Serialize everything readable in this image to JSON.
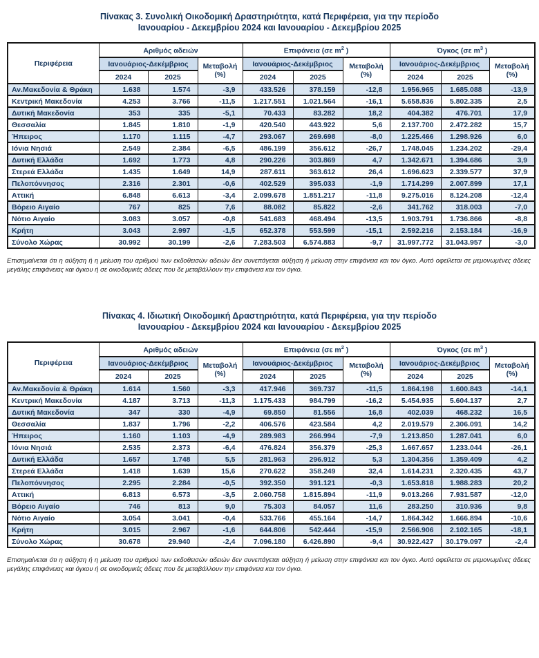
{
  "colors": {
    "text_navy": "#17375d",
    "row_stripe_blue": "#dae6f2",
    "header_period_blue": "#cdddee",
    "border": "#161616",
    "page_background": "#ffffff"
  },
  "tables": [
    {
      "title_line1": "Πίνακας 3. Συνολική Οικοδομική Δραστηριότητα, κατά Περιφέρεια, για την περίοδο",
      "title_line2": "Ιανουαρίου - Δεκεμβρίου 2024 και Ιανουαρίου - Δεκεμβρίου 2025",
      "header": {
        "region": "Περιφέρεια",
        "groups": [
          {
            "pre": "Αριθμός αδειών",
            "sup": "",
            "post": ""
          },
          {
            "pre": "Επιφάνεια (σε m",
            "sup": "2",
            "post": " )"
          },
          {
            "pre": "Όγκος (σε m",
            "sup": "3",
            "post": " )"
          }
        ],
        "period": "Ιανουάριος-Δεκέμβριος",
        "change": "Μεταβολή",
        "change_unit": "(%)",
        "year_2024": "2024",
        "year_2025": "2025"
      },
      "rows": [
        {
          "region": "Αν.Μακεδονία & Θράκη",
          "values": [
            "1.638",
            "1.574",
            "-3,9",
            "433.526",
            "378.159",
            "-12,8",
            "1.956.965",
            "1.685.088",
            "-13,9"
          ]
        },
        {
          "region": "Κεντρική Μακεδονία",
          "values": [
            "4.253",
            "3.766",
            "-11,5",
            "1.217.551",
            "1.021.564",
            "-16,1",
            "5.658.836",
            "5.802.335",
            "2,5"
          ]
        },
        {
          "region": "Δυτική Μακεδονία",
          "values": [
            "353",
            "335",
            "-5,1",
            "70.433",
            "83.282",
            "18,2",
            "404.382",
            "476.701",
            "17,9"
          ]
        },
        {
          "region": "Θεσσαλία",
          "values": [
            "1.845",
            "1.810",
            "-1,9",
            "420.540",
            "443.922",
            "5,6",
            "2.137.700",
            "2.472.282",
            "15,7"
          ]
        },
        {
          "region": "Ήπειρος",
          "values": [
            "1.170",
            "1.115",
            "-4,7",
            "293.067",
            "269.698",
            "-8,0",
            "1.225.466",
            "1.298.926",
            "6,0"
          ]
        },
        {
          "region": "Ιόνια Νησιά",
          "values": [
            "2.549",
            "2.384",
            "-6,5",
            "486.199",
            "356.612",
            "-26,7",
            "1.748.045",
            "1.234.202",
            "-29,4"
          ]
        },
        {
          "region": "Δυτική Ελλάδα",
          "values": [
            "1.692",
            "1.773",
            "4,8",
            "290.226",
            "303.869",
            "4,7",
            "1.342.671",
            "1.394.686",
            "3,9"
          ]
        },
        {
          "region": "Στερεά Ελλάδα",
          "values": [
            "1.435",
            "1.649",
            "14,9",
            "287.611",
            "363.612",
            "26,4",
            "1.696.623",
            "2.339.577",
            "37,9"
          ]
        },
        {
          "region": "Πελοπόννησος",
          "values": [
            "2.316",
            "2.301",
            "-0,6",
            "402.529",
            "395.033",
            "-1,9",
            "1.714.299",
            "2.007.899",
            "17,1"
          ]
        },
        {
          "region": "Αττική",
          "values": [
            "6.848",
            "6.613",
            "-3,4",
            "2.099.678",
            "1.851.217",
            "-11,8",
            "9.275.016",
            "8.124.208",
            "-12,4"
          ]
        },
        {
          "region": "Βόρειο Αιγαίο",
          "values": [
            "767",
            "825",
            "7,6",
            "88.082",
            "85.822",
            "-2,6",
            "341.762",
            "318.003",
            "-7,0"
          ]
        },
        {
          "region": "Νότιο Αιγαίο",
          "values": [
            "3.083",
            "3.057",
            "-0,8",
            "541.683",
            "468.494",
            "-13,5",
            "1.903.791",
            "1.736.866",
            "-8,8"
          ]
        },
        {
          "region": "Κρήτη",
          "values": [
            "3.043",
            "2.997",
            "-1,5",
            "652.378",
            "553.599",
            "-15,1",
            "2.592.216",
            "2.153.184",
            "-16,9"
          ]
        },
        {
          "region": "Σύνολο Χώρας",
          "values": [
            "30.992",
            "30.199",
            "-2,6",
            "7.283.503",
            "6.574.883",
            "-9,7",
            "31.997.772",
            "31.043.957",
            "-3,0"
          ],
          "total": true
        }
      ],
      "footnote": "Επισημαίνεται ότι η αύξηση ή η μείωση του αριθμού των εκδοθεισών αδειών δεν συνεπάγεται αύξηση ή μείωση στην επιφάνεια και τον όγκο. Αυτό οφείλεται σε μεμονωμένες άδειες μεγάλης επιφάνειας και όγκου ή σε οικοδομικές άδειες που δε μεταβάλλουν την επιφάνεια και τον όγκο."
    },
    {
      "title_line1": "Πίνακας 4. Ιδιωτική Οικοδομική Δραστηριότητα, κατά Περιφέρεια, για την περίοδο",
      "title_line2": "Ιανουαρίου - Δεκεμβρίου 2024 και Ιανουαρίου - Δεκεμβρίου 2025",
      "header": {
        "region": "Περιφέρεια",
        "groups": [
          {
            "pre": "Αριθμός αδειών",
            "sup": "",
            "post": ""
          },
          {
            "pre": "Επιφάνεια (σε m",
            "sup": "2",
            "post": " )"
          },
          {
            "pre": "Όγκος (σε m",
            "sup": "3",
            "post": " )"
          }
        ],
        "period": "Ιανουάριος-Δεκέμβριος",
        "change": "Μεταβολή",
        "change_unit": "(%)",
        "year_2024": "2024",
        "year_2025": "2025"
      },
      "rows": [
        {
          "region": "Αν.Μακεδονία & Θράκη",
          "values": [
            "1.614",
            "1.560",
            "-3,3",
            "417.946",
            "369.737",
            "-11,5",
            "1.864.198",
            "1.600.843",
            "-14,1"
          ]
        },
        {
          "region": "Κεντρική Μακεδονία",
          "values": [
            "4.187",
            "3.713",
            "-11,3",
            "1.175.433",
            "984.799",
            "-16,2",
            "5.454.935",
            "5.604.137",
            "2,7"
          ]
        },
        {
          "region": "Δυτική Μακεδονία",
          "values": [
            "347",
            "330",
            "-4,9",
            "69.850",
            "81.556",
            "16,8",
            "402.039",
            "468.232",
            "16,5"
          ]
        },
        {
          "region": "Θεσσαλία",
          "values": [
            "1.837",
            "1.796",
            "-2,2",
            "406.576",
            "423.584",
            "4,2",
            "2.019.579",
            "2.306.091",
            "14,2"
          ]
        },
        {
          "region": "Ήπειρος",
          "values": [
            "1.160",
            "1.103",
            "-4,9",
            "289.983",
            "266.994",
            "-7,9",
            "1.213.850",
            "1.287.041",
            "6,0"
          ]
        },
        {
          "region": "Ιόνια Νησιά",
          "values": [
            "2.535",
            "2.373",
            "-6,4",
            "476.824",
            "356.379",
            "-25,3",
            "1.667.657",
            "1.233.044",
            "-26,1"
          ]
        },
        {
          "region": "Δυτική Ελλάδα",
          "values": [
            "1.657",
            "1.748",
            "5,5",
            "281.963",
            "296.912",
            "5,3",
            "1.304.356",
            "1.359.409",
            "4,2"
          ]
        },
        {
          "region": "Στερεά Ελλάδα",
          "values": [
            "1.418",
            "1.639",
            "15,6",
            "270.622",
            "358.249",
            "32,4",
            "1.614.231",
            "2.320.435",
            "43,7"
          ]
        },
        {
          "region": "Πελοπόννησος",
          "values": [
            "2.295",
            "2.284",
            "-0,5",
            "392.350",
            "391.121",
            "-0,3",
            "1.653.818",
            "1.988.283",
            "20,2"
          ]
        },
        {
          "region": "Αττική",
          "values": [
            "6.813",
            "6.573",
            "-3,5",
            "2.060.758",
            "1.815.894",
            "-11,9",
            "9.013.266",
            "7.931.587",
            "-12,0"
          ]
        },
        {
          "region": "Βόρειο Αιγαίο",
          "values": [
            "746",
            "813",
            "9,0",
            "75.303",
            "84.057",
            "11,6",
            "283.250",
            "310.936",
            "9,8"
          ]
        },
        {
          "region": "Νότιο Αιγαίο",
          "values": [
            "3.054",
            "3.041",
            "-0,4",
            "533.766",
            "455.164",
            "-14,7",
            "1.864.342",
            "1.666.894",
            "-10,6"
          ]
        },
        {
          "region": "Κρήτη",
          "values": [
            "3.015",
            "2.967",
            "-1,6",
            "644.806",
            "542.444",
            "-15,9",
            "2.566.906",
            "2.102.165",
            "-18,1"
          ]
        },
        {
          "region": "Σύνολο Χώρας",
          "values": [
            "30.678",
            "29.940",
            "-2,4",
            "7.096.180",
            "6.426.890",
            "-9,4",
            "30.922.427",
            "30.179.097",
            "-2,4"
          ],
          "total": true
        }
      ],
      "footnote": "Επισημαίνεται ότι η αύξηση ή η μείωση του αριθμού των εκδοθεισών αδειών δεν συνεπάγεται αύξηση ή μείωση στην επιφάνεια και τον όγκο. Αυτό οφείλεται σε μεμονωμένες άδειες μεγάλης επιφάνειας και όγκου ή σε οικοδομικές άδειες που δε μεταβάλλουν την επιφάνεια και τον όγκο."
    }
  ]
}
